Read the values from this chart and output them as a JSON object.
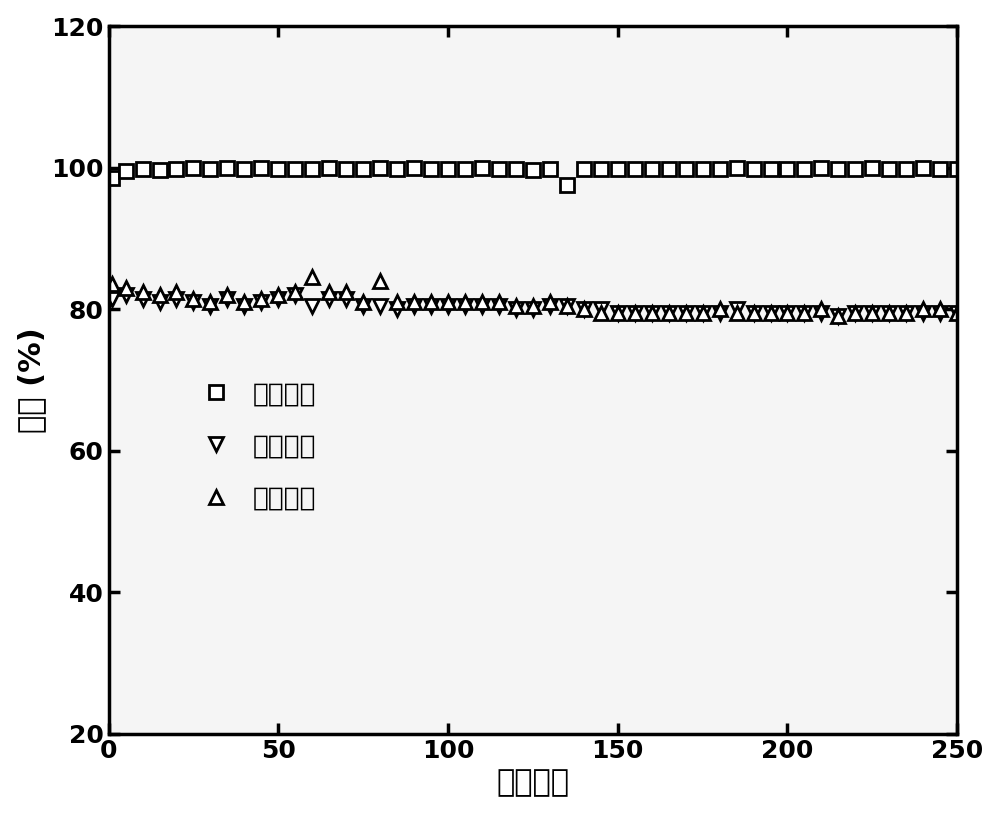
{
  "title": "",
  "xlabel": "循环次数",
  "ylabel": "效率 (%)",
  "xlim": [
    0,
    250
  ],
  "ylim": [
    20,
    120
  ],
  "yticks": [
    20,
    40,
    60,
    80,
    100,
    120
  ],
  "xticks": [
    0,
    50,
    100,
    150,
    200,
    250
  ],
  "bg_color": "#ffffff",
  "plot_bg_color": "#f5f5f5",
  "coulombic_x": [
    1,
    5,
    10,
    15,
    20,
    25,
    30,
    35,
    40,
    45,
    50,
    55,
    60,
    65,
    70,
    75,
    80,
    85,
    90,
    95,
    100,
    105,
    110,
    115,
    120,
    125,
    130,
    135,
    140,
    145,
    150,
    155,
    160,
    165,
    170,
    175,
    180,
    185,
    190,
    195,
    200,
    205,
    210,
    215,
    220,
    225,
    230,
    235,
    240,
    245,
    250
  ],
  "coulombic_y": [
    98.5,
    99.5,
    99.8,
    99.7,
    99.8,
    99.9,
    99.8,
    99.9,
    99.8,
    99.9,
    99.8,
    99.8,
    99.8,
    99.9,
    99.8,
    99.8,
    99.9,
    99.8,
    99.9,
    99.8,
    99.8,
    99.8,
    99.9,
    99.8,
    99.8,
    99.7,
    99.8,
    97.5,
    99.8,
    99.8,
    99.8,
    99.8,
    99.8,
    99.8,
    99.8,
    99.8,
    99.8,
    99.9,
    99.8,
    99.8,
    99.8,
    99.8,
    99.9,
    99.8,
    99.8,
    99.9,
    99.8,
    99.8,
    99.9,
    99.8,
    99.8
  ],
  "voltage_x": [
    1,
    5,
    10,
    15,
    20,
    25,
    30,
    35,
    40,
    45,
    50,
    55,
    60,
    65,
    70,
    75,
    80,
    85,
    90,
    95,
    100,
    105,
    110,
    115,
    120,
    125,
    130,
    135,
    140,
    145,
    150,
    155,
    160,
    165,
    170,
    175,
    180,
    185,
    190,
    195,
    200,
    205,
    210,
    215,
    220,
    225,
    230,
    235,
    240,
    245,
    250
  ],
  "voltage_y": [
    81.5,
    82.0,
    81.5,
    81.0,
    81.5,
    81.0,
    80.5,
    81.5,
    80.5,
    81.0,
    81.5,
    82.0,
    80.5,
    81.5,
    81.5,
    80.5,
    80.5,
    80.0,
    80.5,
    80.5,
    80.5,
    80.5,
    80.5,
    80.5,
    80.0,
    80.0,
    80.5,
    80.5,
    80.0,
    80.0,
    79.5,
    79.5,
    79.5,
    79.5,
    79.5,
    79.5,
    79.5,
    80.0,
    79.5,
    79.5,
    79.5,
    79.5,
    79.5,
    79.0,
    79.5,
    79.5,
    79.5,
    79.5,
    79.5,
    79.5,
    79.5
  ],
  "energy_x": [
    1,
    5,
    10,
    15,
    20,
    25,
    30,
    35,
    40,
    45,
    50,
    55,
    60,
    65,
    70,
    75,
    80,
    85,
    90,
    95,
    100,
    105,
    110,
    115,
    120,
    125,
    130,
    135,
    140,
    145,
    150,
    155,
    160,
    165,
    170,
    175,
    180,
    185,
    190,
    195,
    200,
    205,
    210,
    215,
    220,
    225,
    230,
    235,
    240,
    245,
    250
  ],
  "energy_y": [
    83.5,
    83.0,
    82.5,
    82.0,
    82.5,
    81.5,
    81.0,
    82.0,
    81.0,
    81.5,
    82.0,
    82.5,
    84.5,
    82.5,
    82.5,
    81.0,
    84.0,
    81.0,
    81.0,
    81.0,
    81.0,
    81.0,
    81.0,
    81.0,
    80.5,
    80.5,
    81.0,
    80.5,
    80.0,
    79.5,
    79.5,
    79.5,
    79.5,
    79.5,
    79.5,
    79.5,
    80.0,
    79.5,
    79.5,
    79.5,
    79.5,
    79.5,
    80.0,
    79.0,
    79.5,
    79.5,
    79.5,
    79.5,
    80.0,
    80.0,
    79.5
  ],
  "legend_labels": [
    "库伦效率",
    "电压效率",
    "能量效率"
  ],
  "marker_size": 10,
  "line_color": "#000000",
  "font_size_label": 22,
  "font_size_tick": 18,
  "font_size_legend": 19
}
